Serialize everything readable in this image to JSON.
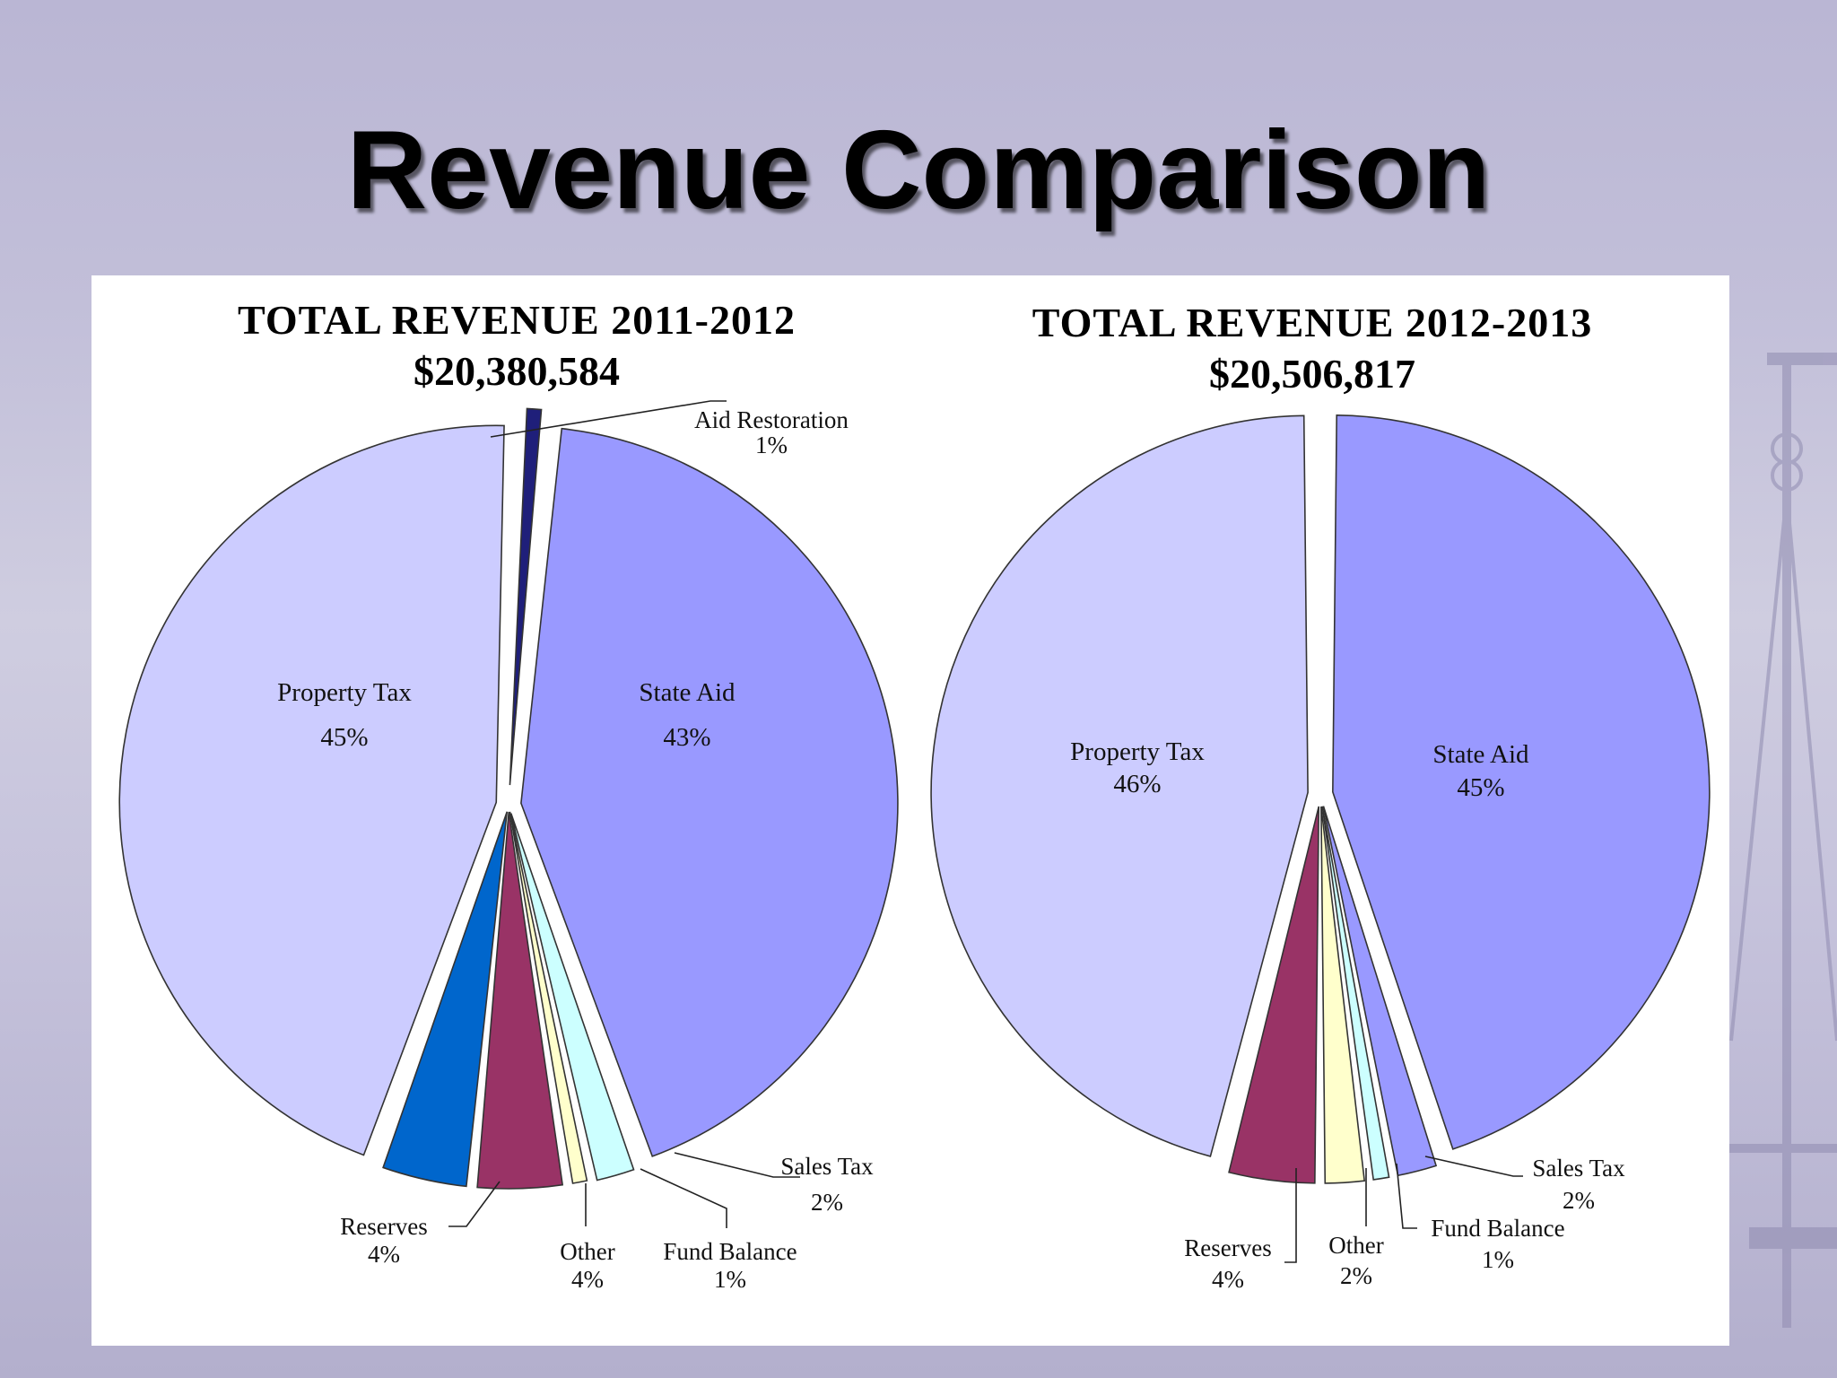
{
  "slide": {
    "title": "Revenue Comparison"
  },
  "chart_data": [
    {
      "type": "pie",
      "title": "TOTAL REVENUE 2011-2012",
      "subtitle": "$20,380,584",
      "slices": [
        {
          "label": "State Aid",
          "value": 43,
          "pct": "43%",
          "color": "#9999ff"
        },
        {
          "label": "Sales Tax",
          "value": 2,
          "pct": "2%",
          "color": "#ccffff"
        },
        {
          "label": "Fund Balance",
          "value": 1,
          "pct": "1%",
          "color": "#ffffcc"
        },
        {
          "label": "Other",
          "value": 4,
          "pct": "4%",
          "color": "#993366"
        },
        {
          "label": "Reserves",
          "value": 4,
          "pct": "4%",
          "color": "#0066cc"
        },
        {
          "label": "Property Tax",
          "value": 45,
          "pct": "45%",
          "color": "#ccccff"
        },
        {
          "label": "Aid Restoration",
          "value": 1,
          "pct": "1%",
          "color": "#1f1f7a"
        }
      ]
    },
    {
      "type": "pie",
      "title": "TOTAL REVENUE 2012-2013",
      "subtitle": "$20,506,817",
      "slices": [
        {
          "label": "State Aid",
          "value": 45,
          "pct": "45%",
          "color": "#9999ff"
        },
        {
          "label": "Sales Tax",
          "value": 2,
          "pct": "2%",
          "color": "#9999ff"
        },
        {
          "label": "Fund Balance",
          "value": 1,
          "pct": "1%",
          "color": "#ccffff"
        },
        {
          "label": "Other",
          "value": 2,
          "pct": "2%",
          "color": "#ffffcc"
        },
        {
          "label": "Reserves",
          "value": 4,
          "pct": "4%",
          "color": "#993366"
        },
        {
          "label": "Property Tax",
          "value": 46,
          "pct": "46%",
          "color": "#ccccff"
        }
      ]
    }
  ]
}
